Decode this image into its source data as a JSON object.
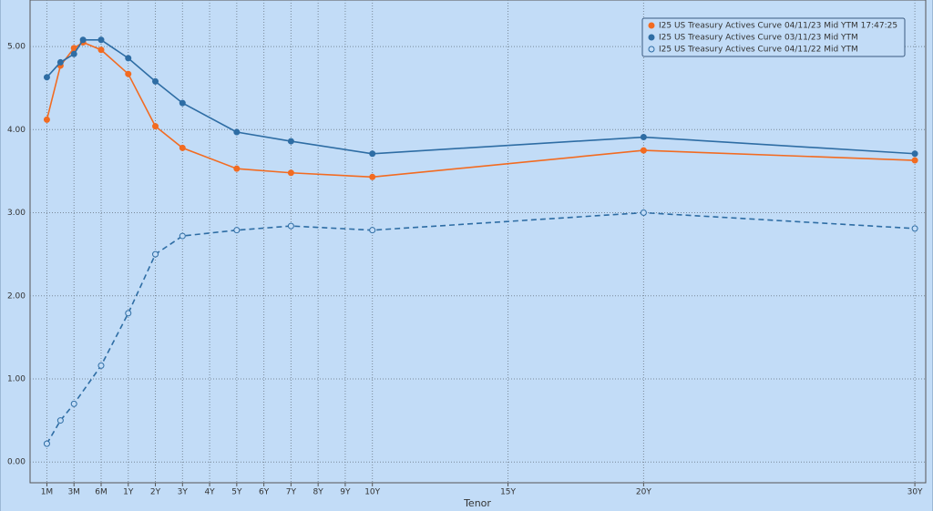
{
  "chart_data": {
    "type": "line",
    "xlabel": "Tenor",
    "xlim": [
      -0.02,
      30.4
    ],
    "ylim": [
      -0.25,
      5.56
    ],
    "xticks": [
      {
        "value": 0.0833,
        "label": "1M"
      },
      {
        "value": 0.25,
        "label": "3M"
      },
      {
        "value": 0.5,
        "label": "6M"
      },
      {
        "value": 1,
        "label": "1Y"
      },
      {
        "value": 2,
        "label": "2Y"
      },
      {
        "value": 3,
        "label": "3Y"
      },
      {
        "value": 4,
        "label": "4Y"
      },
      {
        "value": 5,
        "label": "5Y"
      },
      {
        "value": 6,
        "label": "6Y"
      },
      {
        "value": 7,
        "label": "7Y"
      },
      {
        "value": 8,
        "label": "8Y"
      },
      {
        "value": 9,
        "label": "9Y"
      },
      {
        "value": 10,
        "label": "10Y"
      },
      {
        "value": 15,
        "label": "15Y"
      },
      {
        "value": 20,
        "label": "20Y"
      },
      {
        "value": 30,
        "label": "30Y"
      }
    ],
    "yticks": [
      {
        "value": 0,
        "label": "0.00"
      },
      {
        "value": 1,
        "label": "1.00"
      },
      {
        "value": 2,
        "label": "2.00"
      },
      {
        "value": 3,
        "label": "3.00"
      },
      {
        "value": 4,
        "label": "4.00"
      },
      {
        "value": 5,
        "label": "5.00"
      }
    ],
    "grid": true,
    "legend": "top-right",
    "series": [
      {
        "name": "I25 US Treasury Actives Curve 04/11/23 Mid YTM 17:47:25",
        "color": "#f26b21",
        "dashed": false,
        "marker": "filled",
        "x": [
          0.0833,
          0.1667,
          0.25,
          0.3333,
          0.5,
          1,
          2,
          3,
          5,
          7,
          10,
          20,
          30
        ],
        "values": [
          4.12,
          4.77,
          4.98,
          5.05,
          4.96,
          4.67,
          4.04,
          3.78,
          3.53,
          3.48,
          3.43,
          3.75,
          3.63
        ]
      },
      {
        "name": "I25 US Treasury Actives Curve 03/11/23 Mid YTM",
        "color": "#2e6da4",
        "dashed": false,
        "marker": "filled",
        "x": [
          0.0833,
          0.1667,
          0.25,
          0.3333,
          0.5,
          1,
          2,
          3,
          5,
          7,
          10,
          20,
          30
        ],
        "values": [
          4.63,
          4.81,
          4.91,
          5.08,
          5.08,
          4.86,
          4.58,
          4.32,
          3.97,
          3.86,
          3.71,
          3.91,
          3.71
        ]
      },
      {
        "name": "I25 US Treasury Actives Curve 04/11/22 Mid YTM",
        "color": "#2e6da4",
        "dashed": true,
        "marker": "open",
        "x": [
          0.0833,
          0.1667,
          0.25,
          0.5,
          1,
          2,
          3,
          5,
          7,
          10,
          20,
          30
        ],
        "values": [
          0.22,
          0.5,
          0.7,
          1.16,
          1.79,
          2.5,
          2.72,
          2.79,
          2.84,
          2.79,
          3.0,
          2.81
        ]
      }
    ]
  }
}
